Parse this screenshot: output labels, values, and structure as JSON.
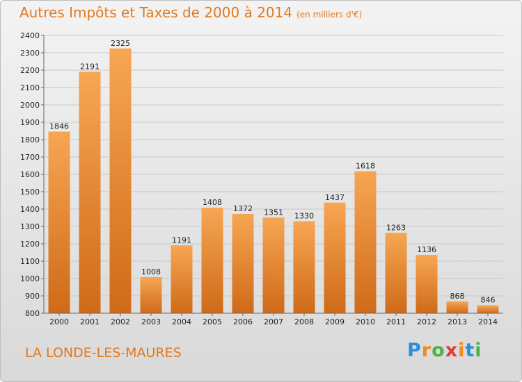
{
  "title": "Autres Impôts et Taxes de 2000 à 2014",
  "title_unit": "(en milliers d'€)",
  "commune": "LA LONDE-LES-MAURES",
  "logo": {
    "letters": [
      {
        "ch": "P",
        "color": "#2f8fd6"
      },
      {
        "ch": "r",
        "color": "#f08a1e"
      },
      {
        "ch": "o",
        "color": "#49b24a"
      },
      {
        "ch": "x",
        "color": "#e53b2c"
      },
      {
        "ch": "i",
        "color": "#f08a1e"
      },
      {
        "ch": "t",
        "color": "#2f8fd6"
      },
      {
        "ch": "i",
        "color": "#49b24a"
      }
    ]
  },
  "colors": {
    "bar_top": "#f7a653",
    "bar_bottom": "#cf6a18",
    "text_accent": "#e07a20",
    "grid": "#c8c8c8"
  },
  "chart_data": {
    "type": "bar",
    "title": "Autres Impôts et Taxes de 2000 à 2014",
    "subtitle": "(en milliers d'€)",
    "xlabel": "",
    "ylabel": "",
    "categories": [
      "2000",
      "2001",
      "2002",
      "2003",
      "2004",
      "2005",
      "2006",
      "2007",
      "2008",
      "2009",
      "2010",
      "2011",
      "2012",
      "2013",
      "2014"
    ],
    "values": [
      1846,
      2191,
      2325,
      1008,
      1191,
      1408,
      1372,
      1351,
      1330,
      1437,
      1618,
      1263,
      1136,
      868,
      846
    ],
    "ylim": [
      800,
      2400
    ],
    "yticks": [
      800,
      900,
      1000,
      1100,
      1200,
      1300,
      1400,
      1500,
      1600,
      1700,
      1800,
      1900,
      2000,
      2100,
      2200,
      2300,
      2400
    ],
    "grid": true,
    "data_labels": true
  }
}
